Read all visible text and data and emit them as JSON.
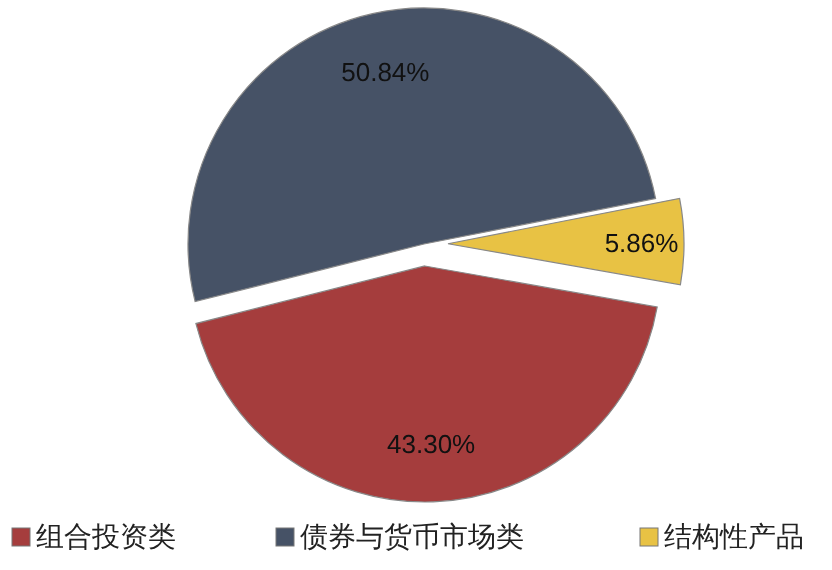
{
  "chart_data": {
    "type": "pie",
    "categories": [
      "组合投资类",
      "债券与货币市场类",
      "结构性产品"
    ],
    "values": [
      43.3,
      50.84,
      5.86
    ],
    "colors": [
      "#a53d3d",
      "#465266",
      "#e8c244"
    ],
    "value_labels": [
      "43.30%",
      "50.84%",
      "5.86%"
    ],
    "legend": "bottom"
  }
}
